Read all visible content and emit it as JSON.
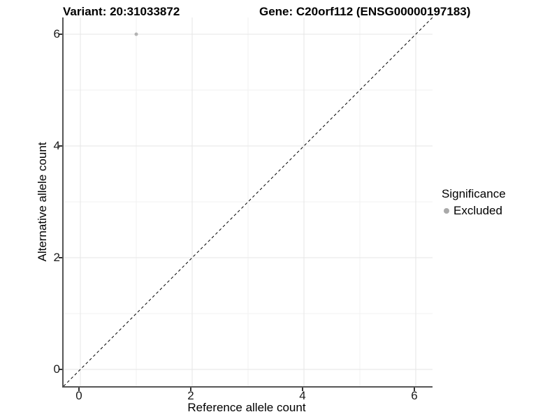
{
  "title": {
    "variant": "Variant: 20:31033872",
    "gene": "Gene: C20orf112 (ENSG00000197183)"
  },
  "axes": {
    "x_label": "Reference allele count",
    "y_label": "Alternative allele count"
  },
  "legend": {
    "title": "Significance",
    "entries": [
      {
        "label": "Excluded",
        "color": "#a9a9a9"
      }
    ]
  },
  "colors": {
    "axis_line": "#565656",
    "tick_mark": "#333333",
    "tick_label": "#1a1a1a",
    "grid_major": "#e5e5e5",
    "grid_minor": "#f2f2f2",
    "point": "#b3b3b3",
    "reference_line": "#000000",
    "background": "#ffffff"
  },
  "chart_data": {
    "type": "scatter",
    "title": "Variant: 20:31033872   Gene: C20orf112 (ENSG00000197183)",
    "xlabel": "Reference allele count",
    "ylabel": "Alternative allele count",
    "xlim": [
      -0.3,
      6.3
    ],
    "ylim": [
      -0.3,
      6.3
    ],
    "x_ticks": [
      0,
      2,
      4,
      6
    ],
    "y_ticks": [
      0,
      2,
      4,
      6
    ],
    "x_minor_ticks": [
      1,
      3,
      5
    ],
    "y_minor_ticks": [
      1,
      3,
      5
    ],
    "grid": true,
    "legend_position": "right",
    "series": [
      {
        "name": "Excluded",
        "color": "#b3b3b3",
        "point_radius": 2.5,
        "points": [
          {
            "x": 1,
            "y": 6
          }
        ]
      }
    ],
    "reference_line": {
      "type": "identity",
      "slope": 1,
      "intercept": 0,
      "style": "dashed",
      "color": "#000000"
    }
  }
}
